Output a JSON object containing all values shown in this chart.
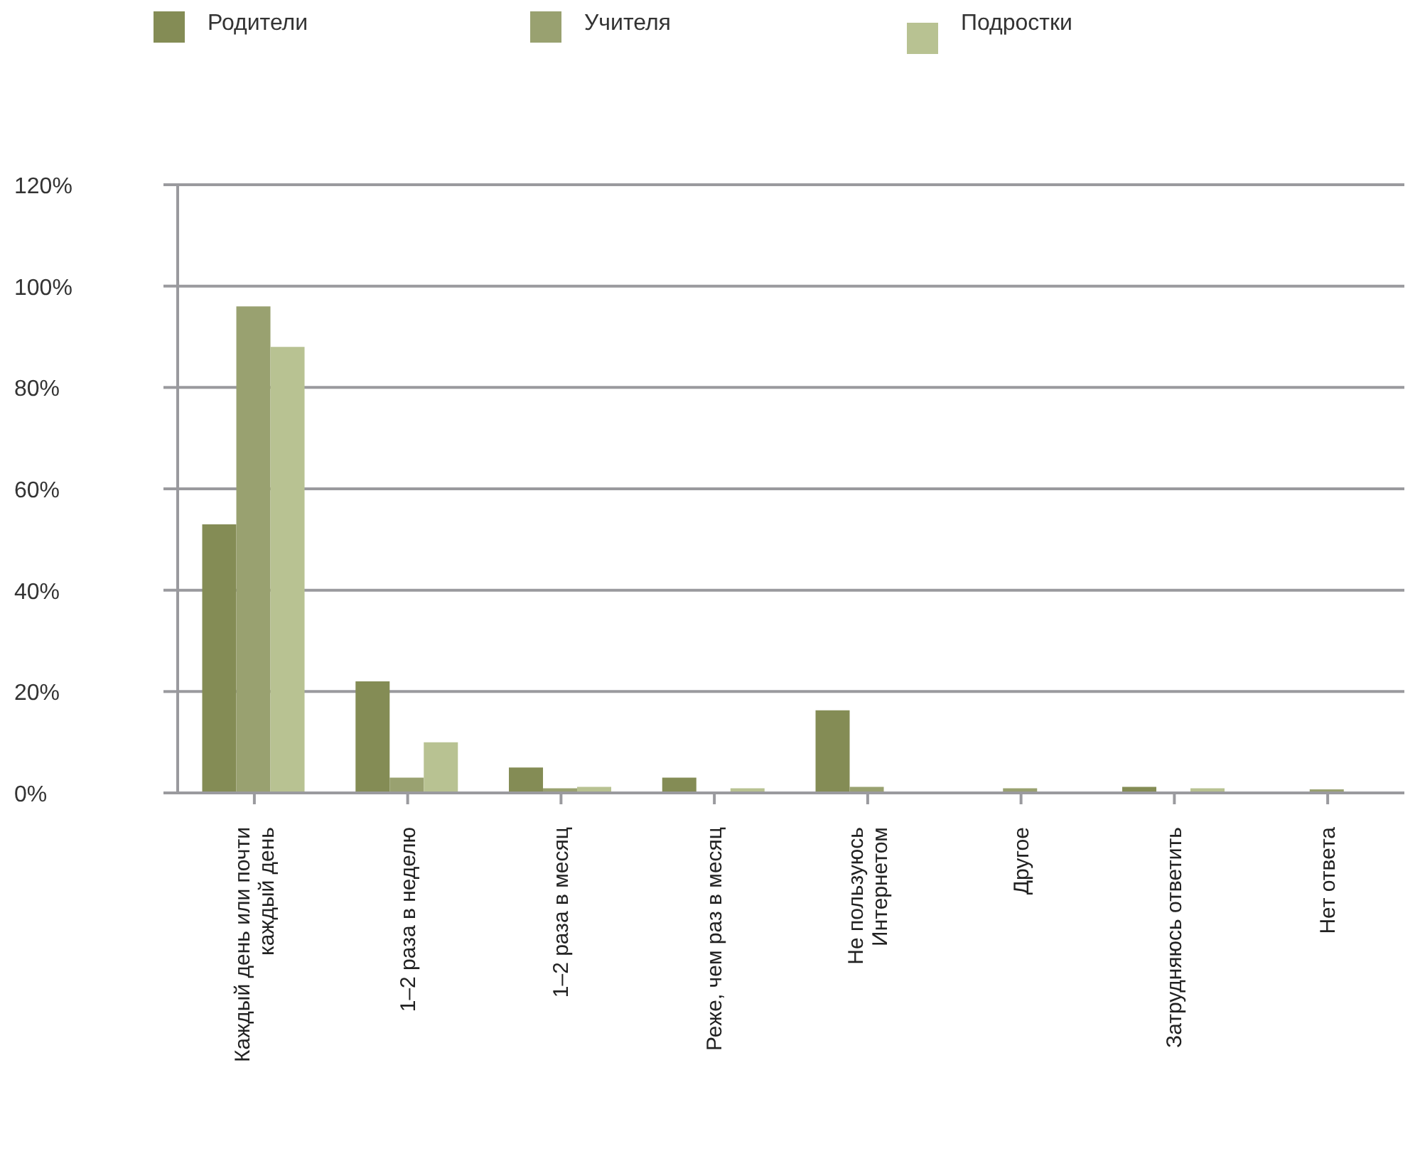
{
  "chart_data": {
    "type": "bar",
    "categories": [
      "Каждый день или почти каждый день",
      "1–2 раза в неделю",
      "1–2 раза в месяц",
      "Реже, чем раз в месяц",
      "Не пользуюсь Интернетом",
      "Другое",
      "Затрудняюсь ответить",
      "Нет ответа"
    ],
    "series": [
      {
        "name": "Родители",
        "color": "#848c55",
        "values": [
          53,
          22,
          5,
          3,
          16.3,
          0,
          1.2,
          0
        ]
      },
      {
        "name": "Учителя",
        "color": "#99a170",
        "values": [
          96,
          3,
          0.9,
          0,
          1.2,
          0.9,
          0,
          0.7
        ]
      },
      {
        "name": "Подростки",
        "color": "#b8c292",
        "values": [
          88,
          10,
          1.2,
          0.9,
          0,
          0,
          0.9,
          0
        ]
      }
    ],
    "ylim": [
      0,
      120
    ],
    "yticks": [
      {
        "value": 0,
        "label": "0%"
      },
      {
        "value": 20,
        "label": "20%"
      },
      {
        "value": 40,
        "label": "40%"
      },
      {
        "value": 60,
        "label": "60%"
      },
      {
        "value": 80,
        "label": "80%"
      },
      {
        "value": 100,
        "label": "100%"
      },
      {
        "value": 120,
        "label": "120%"
      }
    ],
    "grid": "y",
    "legend": "top left"
  }
}
